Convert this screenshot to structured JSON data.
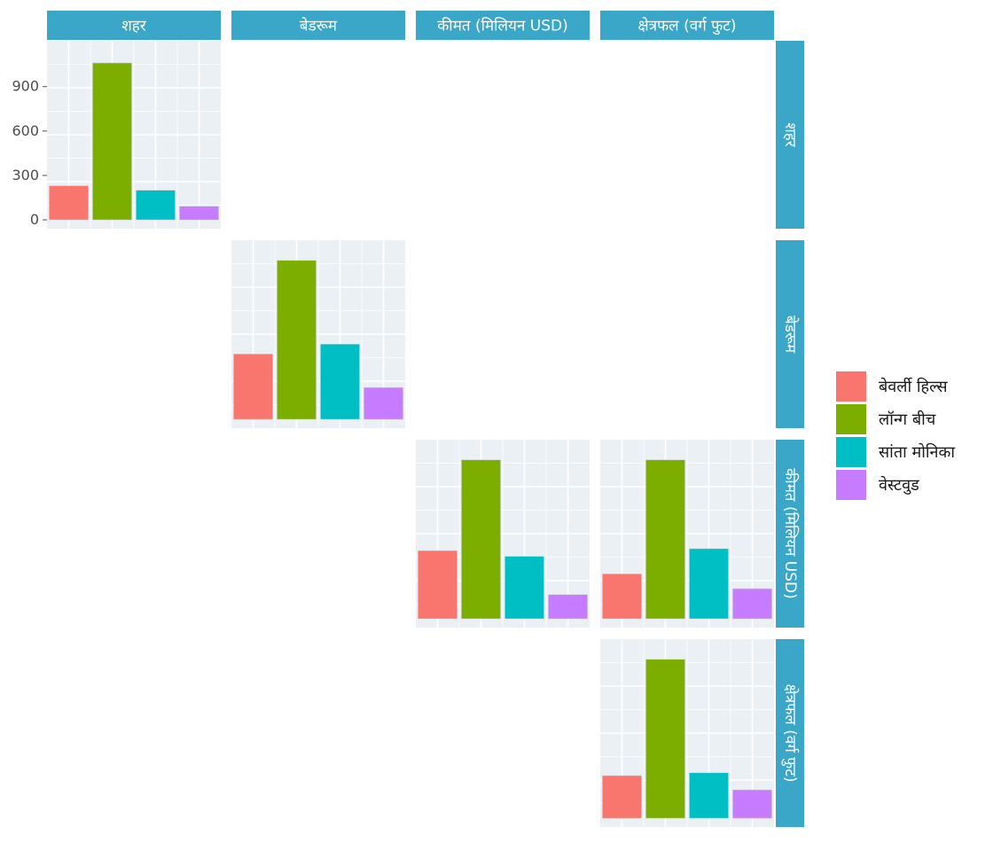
{
  "chart_data": {
    "type": "bar",
    "layout": "pairs-matrix-diagonal",
    "variables": [
      "शहर",
      "बेडरूम",
      "कीमत (मिलियन USD)",
      "क्षेत्रफल (वर्ग फुट)"
    ],
    "categories": [
      "बेवर्ली हिल्स",
      "लॉन्ग बीच",
      "सांता मोनिका",
      "वेस्टवुड"
    ],
    "colors": [
      "#F8766D",
      "#7CAE00",
      "#00BFC4",
      "#C77CFF"
    ],
    "legend_position": "right",
    "grid": true,
    "panels": [
      {
        "row": 0,
        "col": 0,
        "values": [
          230,
          1060,
          200,
          92
        ],
        "ylim": [
          0,
          1150
        ],
        "yticks": [
          "0",
          "300",
          "600",
          "900"
        ],
        "ytick_values": [
          0,
          300,
          600,
          900
        ]
      },
      {
        "row": 1,
        "col": 1,
        "values": [
          230,
          560,
          265,
          112
        ],
        "ylim": [
          0,
          600
        ]
      },
      {
        "row": 2,
        "col": 2,
        "values": [
          240,
          560,
          220,
          85
        ],
        "ylim": [
          0,
          600
        ]
      },
      {
        "row": 2,
        "col": 3,
        "values": [
          158,
          560,
          247,
          106
        ],
        "ylim": [
          0,
          600
        ]
      },
      {
        "row": 3,
        "col": 3,
        "values": [
          150,
          560,
          160,
          100
        ],
        "ylim": [
          0,
          600
        ]
      }
    ]
  }
}
